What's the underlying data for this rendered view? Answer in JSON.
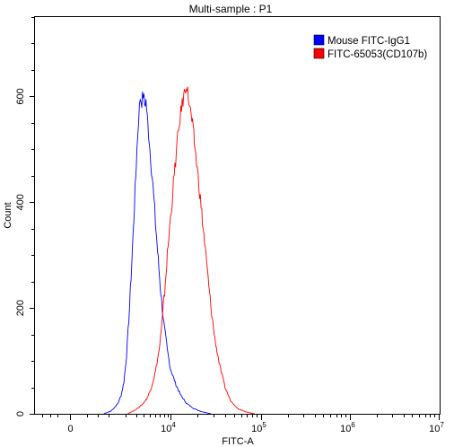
{
  "chart_data": {
    "type": "line",
    "title": "Multi-sample : P1",
    "xlabel": "FITC-A",
    "ylabel": "Count",
    "x_scale": "log",
    "x_ticks": [
      {
        "label": "0",
        "exp": ""
      },
      {
        "label": "10",
        "exp": "4"
      },
      {
        "label": "10",
        "exp": "5"
      },
      {
        "label": "10",
        "exp": "6"
      },
      {
        "label": "10",
        "exp": "7"
      }
    ],
    "y_ticks": [
      "0",
      "200",
      "400",
      "600"
    ],
    "ylim": [
      0,
      750
    ],
    "grid": false,
    "legend_position": "top-right",
    "series": [
      {
        "name": "Mouse FITC-IgG1",
        "color": "#0000ff",
        "points": [
          [
            800,
            0
          ],
          [
            1100,
            5
          ],
          [
            1300,
            12
          ],
          [
            1500,
            20
          ],
          [
            1700,
            35
          ],
          [
            1900,
            60
          ],
          [
            2100,
            110
          ],
          [
            2300,
            180
          ],
          [
            2500,
            260
          ],
          [
            2700,
            340
          ],
          [
            2900,
            420
          ],
          [
            3100,
            500
          ],
          [
            3300,
            560
          ],
          [
            3500,
            598
          ],
          [
            3700,
            590
          ],
          [
            3900,
            604
          ],
          [
            4100,
            585
          ],
          [
            4300,
            592
          ],
          [
            4500,
            560
          ],
          [
            4800,
            520
          ],
          [
            5100,
            480
          ],
          [
            5500,
            430
          ],
          [
            6000,
            360
          ],
          [
            6600,
            290
          ],
          [
            7200,
            230
          ],
          [
            8000,
            170
          ],
          [
            9000,
            120
          ],
          [
            10000,
            85
          ],
          [
            11500,
            55
          ],
          [
            13000,
            35
          ],
          [
            15000,
            20
          ],
          [
            18000,
            10
          ],
          [
            22000,
            4
          ],
          [
            28000,
            0
          ]
        ]
      },
      {
        "name": "FITC-65053(CD107b)",
        "color": "#ff0000",
        "points": [
          [
            2200,
            0
          ],
          [
            3000,
            8
          ],
          [
            3800,
            18
          ],
          [
            4500,
            30
          ],
          [
            5200,
            50
          ],
          [
            6000,
            80
          ],
          [
            6800,
            120
          ],
          [
            7500,
            170
          ],
          [
            8200,
            230
          ],
          [
            9000,
            300
          ],
          [
            10000,
            370
          ],
          [
            11000,
            450
          ],
          [
            12000,
            520
          ],
          [
            13000,
            570
          ],
          [
            14000,
            600
          ],
          [
            15000,
            625
          ],
          [
            16000,
            590
          ],
          [
            17500,
            545
          ],
          [
            19000,
            490
          ],
          [
            21000,
            420
          ],
          [
            23000,
            350
          ],
          [
            25500,
            270
          ],
          [
            28000,
            200
          ],
          [
            31000,
            140
          ],
          [
            35000,
            90
          ],
          [
            40000,
            50
          ],
          [
            46000,
            25
          ],
          [
            55000,
            10
          ],
          [
            70000,
            3
          ],
          [
            85000,
            0
          ]
        ]
      }
    ]
  }
}
